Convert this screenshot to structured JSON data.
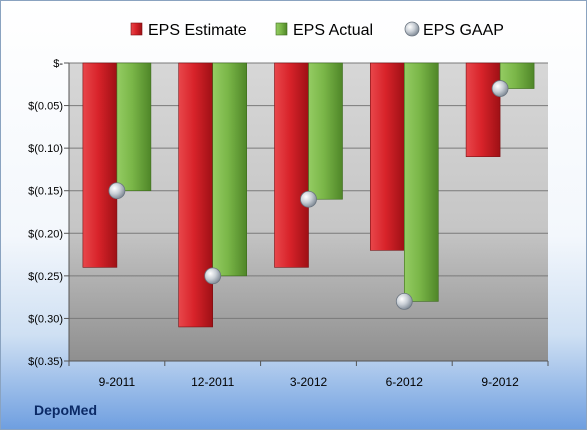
{
  "company": "DepoMed",
  "colors": {
    "estimate": "#d8232a",
    "actual": "#7ab648",
    "gaap": "#b9c2cc"
  },
  "chart_data": {
    "type": "bar",
    "categories": [
      "9-2011",
      "12-2011",
      "3-2012",
      "6-2012",
      "9-2012"
    ],
    "series": [
      {
        "name": "EPS Estimate",
        "kind": "bar",
        "values": [
          -0.24,
          -0.31,
          -0.24,
          -0.22,
          -0.11
        ]
      },
      {
        "name": "EPS Actual",
        "kind": "bar",
        "values": [
          -0.15,
          -0.25,
          -0.16,
          -0.28,
          -0.03
        ]
      },
      {
        "name": "EPS GAAP",
        "kind": "marker",
        "values": [
          -0.15,
          -0.25,
          -0.16,
          -0.28,
          -0.03
        ]
      }
    ],
    "yticks": [
      0,
      -0.05,
      -0.1,
      -0.15,
      -0.2,
      -0.25,
      -0.3,
      -0.35
    ],
    "ytick_labels": [
      "$-",
      "$(0.05)",
      "$(0.10)",
      "$(0.15)",
      "$(0.20)",
      "$(0.25)",
      "$(0.30)",
      "$(0.35)"
    ],
    "ylim": [
      -0.35,
      0
    ],
    "grid": true,
    "legend": "top"
  }
}
